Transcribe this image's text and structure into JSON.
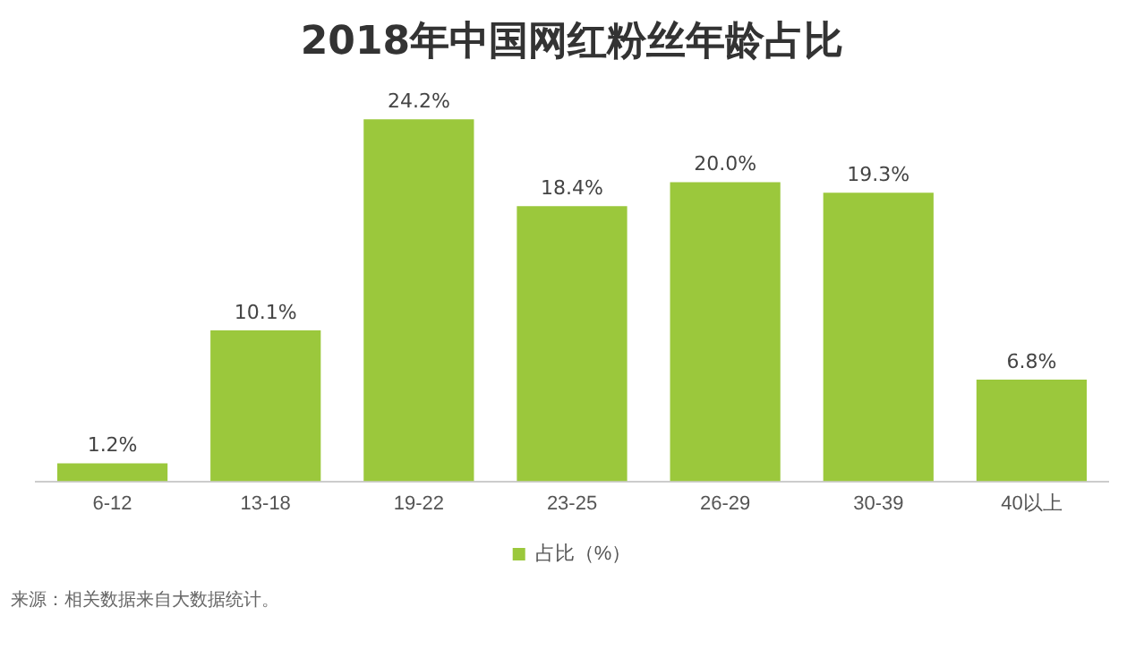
{
  "chart_data": {
    "type": "bar",
    "title": "2018年中国网红粉丝年龄占比",
    "categories": [
      "6-12",
      "13-18",
      "19-22",
      "23-25",
      "26-29",
      "30-39",
      "40以上"
    ],
    "series": [
      {
        "name": "占比（%）",
        "color": "#9bc83c",
        "values": [
          1.2,
          10.1,
          24.2,
          18.4,
          20.0,
          19.3,
          6.8
        ],
        "value_labels": [
          "1.2%",
          "10.1%",
          "24.2%",
          "18.4%",
          "20.0%",
          "19.3%",
          "6.8%"
        ]
      }
    ],
    "legend": "bottom",
    "grid": false,
    "tick_labels": "x",
    "annotations": [
      "来源：相关数据来自大数据统计。"
    ]
  }
}
